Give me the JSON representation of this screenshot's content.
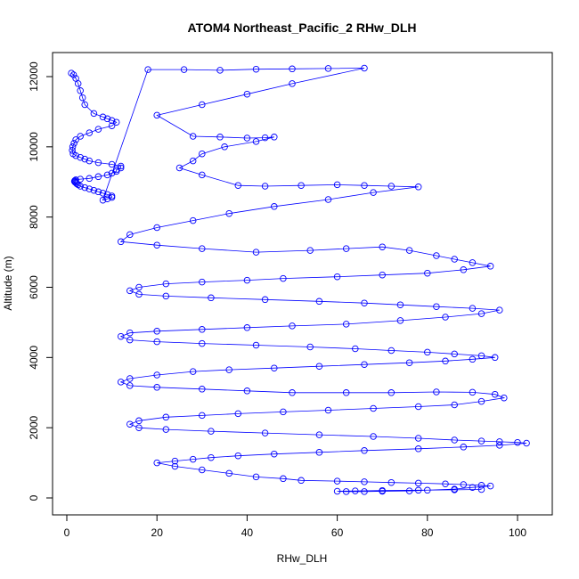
{
  "chart_data": {
    "type": "scatter",
    "title": "ATOM4 Northeast_Pacific_2 RHw_DLH",
    "xlabel": "RHw_DLH",
    "ylabel": "Altitude (m)",
    "xlim": [
      0,
      100
    ],
    "ylim": [
      0,
      12000
    ],
    "x_ticks": [
      0,
      20,
      40,
      60,
      80,
      100
    ],
    "y_ticks": [
      0,
      2000,
      4000,
      6000,
      8000,
      10000,
      12000
    ],
    "grid": false,
    "legend": "none",
    "color": "#0000ff",
    "marker": "open-circle",
    "connected": true,
    "series": [
      {
        "x": [
          1,
          1.5,
          2,
          2.5,
          3,
          3.5,
          4,
          6,
          8,
          9,
          10,
          11,
          10,
          7,
          5,
          3,
          2,
          1.6,
          1.3,
          1.2,
          1.4,
          2,
          3,
          4,
          5,
          7,
          10,
          12,
          12,
          11,
          11,
          10,
          9,
          7,
          5,
          3,
          2,
          1.8,
          1.7,
          1.8,
          2,
          2.2,
          2.5,
          3,
          4,
          5,
          6,
          7,
          8,
          9,
          10,
          10,
          9,
          8,
          18,
          26,
          34,
          42,
          50,
          58,
          66,
          50,
          40,
          30,
          20,
          28,
          34,
          40,
          44,
          46,
          42,
          35,
          30,
          28,
          25,
          30,
          38,
          44,
          52,
          60,
          66,
          72,
          78,
          68,
          58,
          46,
          36,
          28,
          20,
          14,
          12,
          20,
          30,
          42,
          54,
          62,
          70,
          76,
          82,
          86,
          90,
          94,
          88,
          80,
          70,
          60,
          48,
          40,
          30,
          22,
          16,
          14,
          16,
          22,
          32,
          44,
          56,
          66,
          74,
          82,
          90,
          96,
          92,
          84,
          74,
          62,
          50,
          40,
          30,
          20,
          14,
          12,
          14,
          20,
          30,
          42,
          54,
          64,
          72,
          80,
          86,
          92,
          95,
          90,
          84,
          76,
          66,
          56,
          46,
          36,
          28,
          20,
          14,
          12,
          14,
          20,
          30,
          40,
          50,
          62,
          72,
          82,
          90,
          95,
          97,
          92,
          86,
          78,
          68,
          58,
          48,
          38,
          30,
          22,
          16,
          14,
          16,
          22,
          32,
          44,
          56,
          68,
          78,
          86,
          92,
          96,
          100,
          102,
          96,
          88,
          78,
          66,
          56,
          46,
          38,
          32,
          28,
          24,
          20,
          24,
          30,
          36,
          42,
          48,
          52,
          60,
          66,
          72,
          78,
          84,
          88,
          92,
          94,
          90,
          86,
          80,
          76,
          70,
          66,
          62,
          60,
          64,
          70,
          78,
          86,
          92
        ],
        "y": [
          12100,
          12050,
          11950,
          11800,
          11600,
          11400,
          11200,
          10950,
          10850,
          10800,
          10750,
          10700,
          10600,
          10500,
          10400,
          10300,
          10200,
          10100,
          10000,
          9900,
          9800,
          9750,
          9700,
          9650,
          9600,
          9550,
          9500,
          9450,
          9400,
          9350,
          9300,
          9250,
          9200,
          9150,
          9100,
          9080,
          9060,
          9040,
          9020,
          9000,
          8980,
          8950,
          8920,
          8880,
          8840,
          8800,
          8760,
          8720,
          8680,
          8640,
          8600,
          8560,
          8520,
          8480,
          12200,
          12200,
          12180,
          12210,
          12220,
          12230,
          12240,
          11800,
          11500,
          11200,
          10900,
          10300,
          10280,
          10250,
          10260,
          10280,
          10150,
          10000,
          9800,
          9600,
          9400,
          9200,
          8900,
          8880,
          8900,
          8920,
          8900,
          8880,
          8860,
          8700,
          8500,
          8300,
          8100,
          7900,
          7700,
          7500,
          7300,
          7200,
          7100,
          7000,
          7050,
          7100,
          7150,
          7050,
          6900,
          6800,
          6700,
          6600,
          6500,
          6400,
          6350,
          6300,
          6250,
          6200,
          6150,
          6100,
          6000,
          5900,
          5800,
          5750,
          5700,
          5650,
          5600,
          5550,
          5500,
          5450,
          5400,
          5350,
          5250,
          5150,
          5050,
          4950,
          4900,
          4850,
          4800,
          4750,
          4700,
          4600,
          4500,
          4450,
          4400,
          4350,
          4300,
          4250,
          4200,
          4150,
          4100,
          4050,
          4000,
          3950,
          3900,
          3850,
          3800,
          3750,
          3700,
          3650,
          3600,
          3500,
          3400,
          3300,
          3200,
          3150,
          3100,
          3050,
          3000,
          3000,
          3000,
          3020,
          3010,
          2950,
          2850,
          2750,
          2650,
          2600,
          2550,
          2500,
          2450,
          2400,
          2350,
          2300,
          2200,
          2100,
          2000,
          1950,
          1900,
          1850,
          1800,
          1750,
          1700,
          1650,
          1620,
          1600,
          1580,
          1560,
          1500,
          1450,
          1400,
          1350,
          1300,
          1250,
          1200,
          1150,
          1100,
          1050,
          1000,
          900,
          800,
          700,
          600,
          550,
          500,
          480,
          460,
          440,
          420,
          400,
          380,
          360,
          340,
          300,
          250,
          220,
          200,
          190,
          180,
          180,
          190,
          200,
          210,
          220,
          230,
          240
        ]
      }
    ]
  }
}
